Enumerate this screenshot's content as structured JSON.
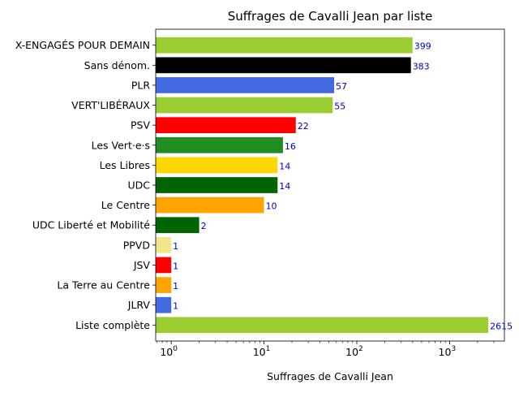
{
  "chart_data": {
    "type": "bar",
    "orientation": "horizontal",
    "title": "Suffrages de Cavalli Jean par liste",
    "xlabel": "Suffrages de Cavalli Jean",
    "ylabel": "",
    "xscale": "log",
    "xlim": [
      0.68,
      3900
    ],
    "x_ticks": [
      {
        "value": 1,
        "base": "10",
        "exp": "0"
      },
      {
        "value": 10,
        "base": "10",
        "exp": "1"
      },
      {
        "value": 100,
        "base": "10",
        "exp": "2"
      },
      {
        "value": 1000,
        "base": "10",
        "exp": "3"
      }
    ],
    "grid": false,
    "legend": "none",
    "categories": [
      "X-ENGAGÉS POUR DEMAIN",
      "Sans dénom.",
      "PLR",
      "VERT'LIBÉRAUX",
      "PSV",
      "Les Vert·e·s",
      "Les Libres",
      "UDC",
      "Le Centre",
      "UDC Liberté et Mobilité",
      "PPVD",
      "JSV",
      "La Terre au Centre",
      "JLRV",
      "Liste complète"
    ],
    "values": [
      399,
      383,
      57,
      55,
      22,
      16,
      14,
      14,
      10,
      2,
      1,
      1,
      1,
      1,
      2615
    ],
    "value_labels": [
      "399",
      "383",
      "57",
      "55",
      "22",
      "16",
      "14",
      "14",
      "10",
      "2",
      "1",
      "1",
      "1",
      "1",
      "2615"
    ],
    "colors": [
      "#9acd32",
      "#000000",
      "#4169e1",
      "#9acd32",
      "#ff0000",
      "#228b22",
      "#ffd700",
      "#006400",
      "#ffa500",
      "#006400",
      "#f0e68c",
      "#ff0000",
      "#ffa500",
      "#4169e1",
      "#9acd32"
    ],
    "value_label_color": "#0000cc"
  }
}
